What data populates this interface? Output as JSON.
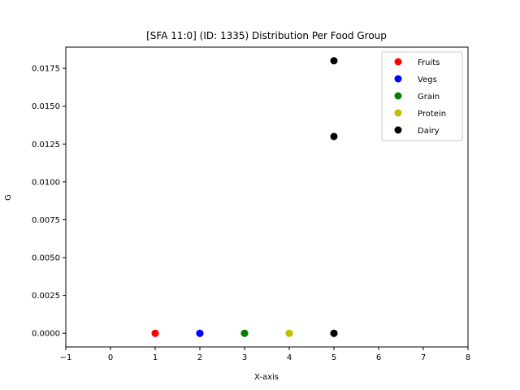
{
  "chart_data": {
    "type": "scatter",
    "title": "[SFA 11:0] (ID: 1335) Distribution Per Food Group",
    "xlabel": "X-axis",
    "ylabel": "G",
    "xlim": [
      -1,
      8
    ],
    "ylim": [
      -0.0009,
      0.0189
    ],
    "x_ticks": [
      -1,
      0,
      1,
      2,
      3,
      4,
      5,
      6,
      7,
      8
    ],
    "x_tick_labels": [
      "−1",
      "0",
      "1",
      "2",
      "3",
      "4",
      "5",
      "6",
      "7",
      "8"
    ],
    "y_ticks": [
      0,
      0.0025,
      0.005,
      0.0075,
      0.01,
      0.0125,
      0.015,
      0.0175
    ],
    "y_tick_labels": [
      "0.0000",
      "0.0025",
      "0.0050",
      "0.0075",
      "0.0100",
      "0.0125",
      "0.0150",
      "0.0175"
    ],
    "grid": false,
    "legend_position": "top-right",
    "series": [
      {
        "name": "Fruits",
        "color": "#ff0000",
        "x": [
          1,
          1
        ],
        "y": [
          0,
          0
        ]
      },
      {
        "name": "Vegs",
        "color": "#0000ff",
        "x": [
          2,
          2
        ],
        "y": [
          0,
          0
        ]
      },
      {
        "name": "Grain",
        "color": "#008000",
        "x": [
          3,
          3
        ],
        "y": [
          0,
          0
        ]
      },
      {
        "name": "Protein",
        "color": "#bfbf00",
        "x": [
          4,
          4
        ],
        "y": [
          0,
          0
        ]
      },
      {
        "name": "Dairy",
        "color": "#000000",
        "x": [
          5,
          5,
          5,
          5
        ],
        "y": [
          0,
          0,
          0.013,
          0.018
        ]
      }
    ]
  }
}
